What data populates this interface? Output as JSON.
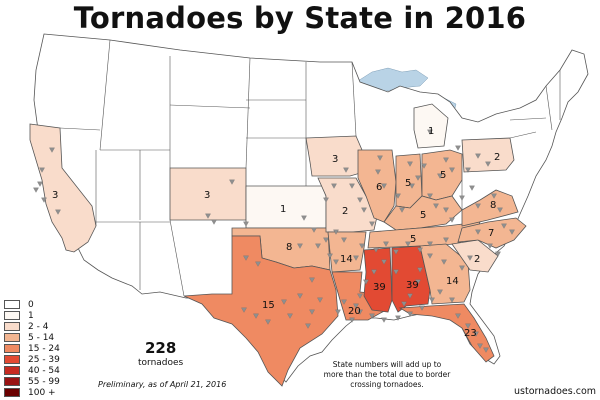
{
  "title": "Tornadoes by State in 2016",
  "colors": {
    "water": "#b9d3e6",
    "border": "#555555",
    "marker": "#8f8f8f",
    "bin_0": "#ffffff",
    "bin_1": "#fdf8f3",
    "bin_2_4": "#f9dccb",
    "bin_5_14": "#f3b692",
    "bin_15_24": "#ef8a62",
    "bin_25_39": "#e24a33",
    "bin_40_54": "#c62b22",
    "bin_55_99": "#9a1414",
    "bin_100_plus": "#6a0000"
  },
  "legend": [
    {
      "label": "0",
      "color": "#ffffff"
    },
    {
      "label": "1",
      "color": "#fdf8f3"
    },
    {
      "label": "2 - 4",
      "color": "#f9dccb"
    },
    {
      "label": "5 - 14",
      "color": "#f3b692"
    },
    {
      "label": "15 - 24",
      "color": "#ef8a62"
    },
    {
      "label": "25 - 39",
      "color": "#e24a33"
    },
    {
      "label": "40 - 54",
      "color": "#c62b22"
    },
    {
      "label": "55 - 99",
      "color": "#9a1414"
    },
    {
      "label": "100 +",
      "color": "#6a0000"
    }
  ],
  "total": {
    "count": "228",
    "unit": "tornadoes"
  },
  "preliminary": "Preliminary, as of April 21, 2016",
  "note": "State numbers will add up to more than the total due to border crossing tornadoes.",
  "credit": "ustornadoes.com",
  "state_counts": {
    "california": "3",
    "colorado": "3",
    "kansas": "1",
    "oklahoma": "8",
    "texas": "15",
    "iowa": "3",
    "missouri": "2",
    "arkansas": "14",
    "louisiana": "20",
    "illinois": "6",
    "indiana": "5",
    "ohio": "5",
    "michigan": "1",
    "kentucky": "5",
    "tennessee": "5",
    "mississippi": "39",
    "alabama": "39",
    "georgia": "14",
    "florida": "23",
    "south_carolina": "2",
    "north_carolina": "7",
    "virginia": "8",
    "pennsylvania": "2"
  }
}
